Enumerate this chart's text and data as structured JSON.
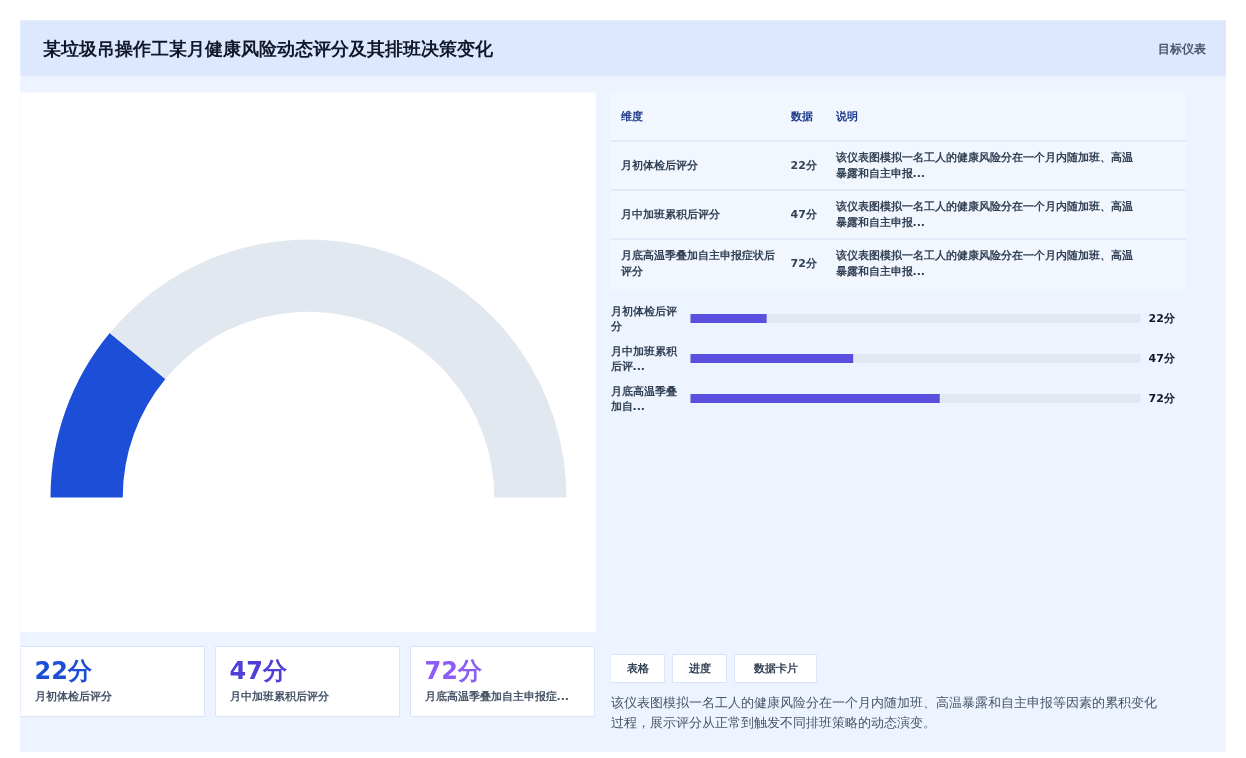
{
  "chart_data": [
    {
      "type": "other",
      "title": "某垃圾吊操作工某月健康风险动态评分及其排班决策变化",
      "annotations": [
        "目标仪表"
      ]
    },
    {
      "type": "donut",
      "categories": [
        null,
        null
      ],
      "values": [
        22,
        78
      ],
      "colors": [
        "#1d4ed8",
        "#e2e8f0"
      ]
    },
    {
      "type": "other",
      "annotations": [
        "维度",
        "数据",
        "说明",
        "月初体检后评分",
        "22分",
        "该仪表图模拟一名工人的健康风险分在一个月内随加班、高温暴露和自主申报...",
        "月中加班累积后评分",
        "47分",
        "该仪表图模拟一名工人的健康风险分在一个月内随加班、高温暴露和自主申报...",
        "月底高温季叠加自主申报症状后评分",
        "72分",
        "该仪表图模拟一名工人的健康风险分在一个月内随加班、高温暴露和自主申报..."
      ]
    },
    {
      "type": "bar",
      "orientation": "horizontal",
      "categories": [
        "月初体检后评分",
        "月中加班累积后评...",
        "月底高温季叠加自..."
      ],
      "values": [
        22,
        47,
        72
      ],
      "value_labels": [
        "22分",
        "47分",
        "72分"
      ],
      "color": "#5b4fe0",
      "xlim": [
        0,
        130
      ],
      "tick_labels": "y"
    },
    {
      "type": "other",
      "annotations": [
        "22分",
        "月初体检后评分",
        "47分",
        "月中加班累积后评分",
        "72分",
        "月底高温季叠加自主申报症..."
      ],
      "colors": [
        "#1d4ed8",
        "#4f3fd6",
        "#8b5cf6"
      ]
    },
    {
      "type": "other",
      "annotations": [
        "表格",
        "进度",
        "数据卡片",
        "该仪表图模拟一名工人的健康风险分在一个月内随加班、高温暴露和自主申报等因素的累积变化过程，展示评分从正常到触发不同排班策略的动态演变。"
      ]
    }
  ]
}
